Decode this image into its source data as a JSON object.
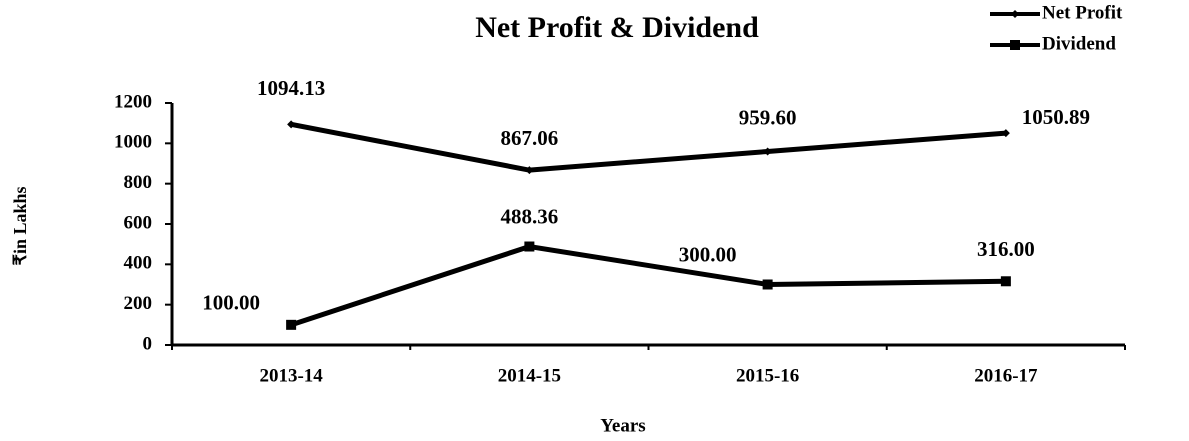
{
  "chart_data": {
    "type": "line",
    "title": "Net Profit & Dividend",
    "x_label": "Years",
    "y_label": "₹in Lakhs",
    "categories": [
      "2013-14",
      "2014-15",
      "2015-16",
      "2016-17"
    ],
    "series": [
      {
        "name": "Net Profit",
        "color": "#000000",
        "values": [
          1094.13,
          867.06,
          959.6,
          1050.89
        ],
        "value_labels": [
          "1094.13",
          "867.06",
          "959.60",
          "1050.89"
        ]
      },
      {
        "name": "Dividend",
        "color": "#000000",
        "values": [
          100,
          488.36,
          300,
          316
        ],
        "value_labels": [
          "100.00",
          "488.36",
          "300.00",
          "316.00"
        ]
      }
    ],
    "ylim": [
      0,
      1200
    ],
    "yticks": [
      0,
      200,
      400,
      600,
      800,
      1000,
      1200
    ],
    "grid": false,
    "legend": "top-right"
  }
}
